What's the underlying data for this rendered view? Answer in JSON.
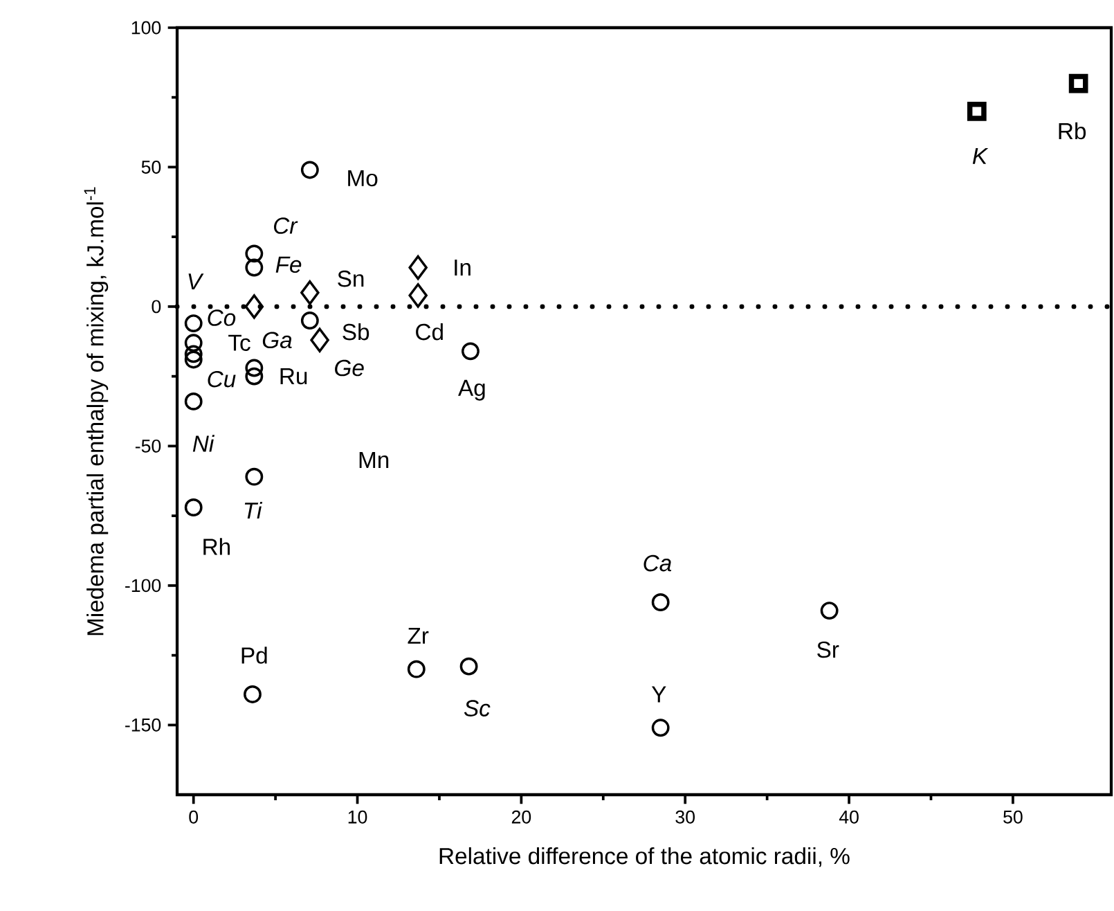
{
  "chart_data": {
    "type": "scatter",
    "xlabel": "Relative difference of the atomic radii, %",
    "ylabel": "Miedema partial enthalpy of mixing,  kJ.mol$^{-1}$",
    "xlim": [
      -1,
      56
    ],
    "ylim": [
      -175,
      100
    ],
    "xticks": [
      0,
      10,
      20,
      30,
      40,
      50
    ],
    "yticks": [
      -150,
      -100,
      -50,
      0,
      50,
      100
    ],
    "grid": false,
    "series": [
      {
        "color": "#000000",
        "marker": "circle",
        "x": [
          7.1,
          3.7,
          3.7,
          0,
          0,
          0,
          0,
          0,
          0,
          7.1,
          16.9,
          3.7,
          3.7,
          3.7,
          3.6,
          13.6,
          16.8,
          28.5,
          28.5,
          38.8
        ],
        "values": [
          49,
          19,
          14,
          -6,
          -13,
          -17,
          -19,
          -34,
          -72,
          -5,
          -16,
          -22,
          -25,
          -61,
          -139,
          -130,
          -129,
          -106,
          -151,
          -109
        ]
      },
      {
        "color": "#000000",
        "marker": "diamond",
        "x": [
          3.7,
          7.1,
          7.7,
          13.7,
          13.7
        ],
        "values": [
          0,
          5,
          -12,
          14,
          4
        ]
      },
      {
        "color": "#000000",
        "marker": "square",
        "x": [
          47.8,
          54
        ],
        "values": [
          70,
          80
        ]
      }
    ],
    "ref_lines": [
      {
        "axis": "y",
        "value": 0,
        "color": "#000000",
        "line_style": "dotted"
      }
    ],
    "annotations": [
      {
        "text": "Mo",
        "x": 7.1,
        "y": 49
      },
      {
        "text": "*Cr*",
        "x": 3.7,
        "y": 19
      },
      {
        "text": "*Fe*",
        "x": 3.7,
        "y": 14
      },
      {
        "text": "Sn",
        "x": 7.1,
        "y": 5
      },
      {
        "text": "*V*",
        "x": 0,
        "y": -6
      },
      {
        "text": "*Co*",
        "x": 0,
        "y": -13
      },
      {
        "text": "Tc",
        "x": 0,
        "y": -17
      },
      {
        "text": "*Ga*",
        "x": 3.7,
        "y": 0
      },
      {
        "text": "Sb",
        "x": 7.1,
        "y": -5
      },
      {
        "text": "*Cu*",
        "x": 0,
        "y": -19
      },
      {
        "text": "Ru",
        "x": 3.7,
        "y": -22
      },
      {
        "text": "*Ge*",
        "x": 7.7,
        "y": -12
      },
      {
        "text": "In",
        "x": 13.7,
        "y": 14
      },
      {
        "text": "Cd",
        "x": 13.7,
        "y": 4
      },
      {
        "text": "Ag",
        "x": 16.9,
        "y": -16
      },
      {
        "text": "*Ni*",
        "x": 0,
        "y": -34
      },
      "Mn",
      {
        "text": "*Ti*",
        "x": 3.7,
        "y": -61
      },
      {
        "text": "Rh",
        "x": 0,
        "y": -72
      },
      {
        "text": "*Ca*",
        "x": 28.5,
        "y": -106
      },
      {
        "text": "Pd",
        "x": 3.6,
        "y": -139
      },
      {
        "text": "Zr",
        "x": 13.6,
        "y": -130
      },
      {
        "text": "*Sc*",
        "x": 16.8,
        "y": -129
      },
      {
        "text": "Y",
        "x": 28.5,
        "y": -151
      },
      {
        "text": "Sr",
        "x": 38.8,
        "y": -109
      },
      {
        "text": "*K*",
        "x": 47.8,
        "y": 70
      },
      {
        "text": "Rb",
        "x": 54,
        "y": 80
      }
    ]
  }
}
